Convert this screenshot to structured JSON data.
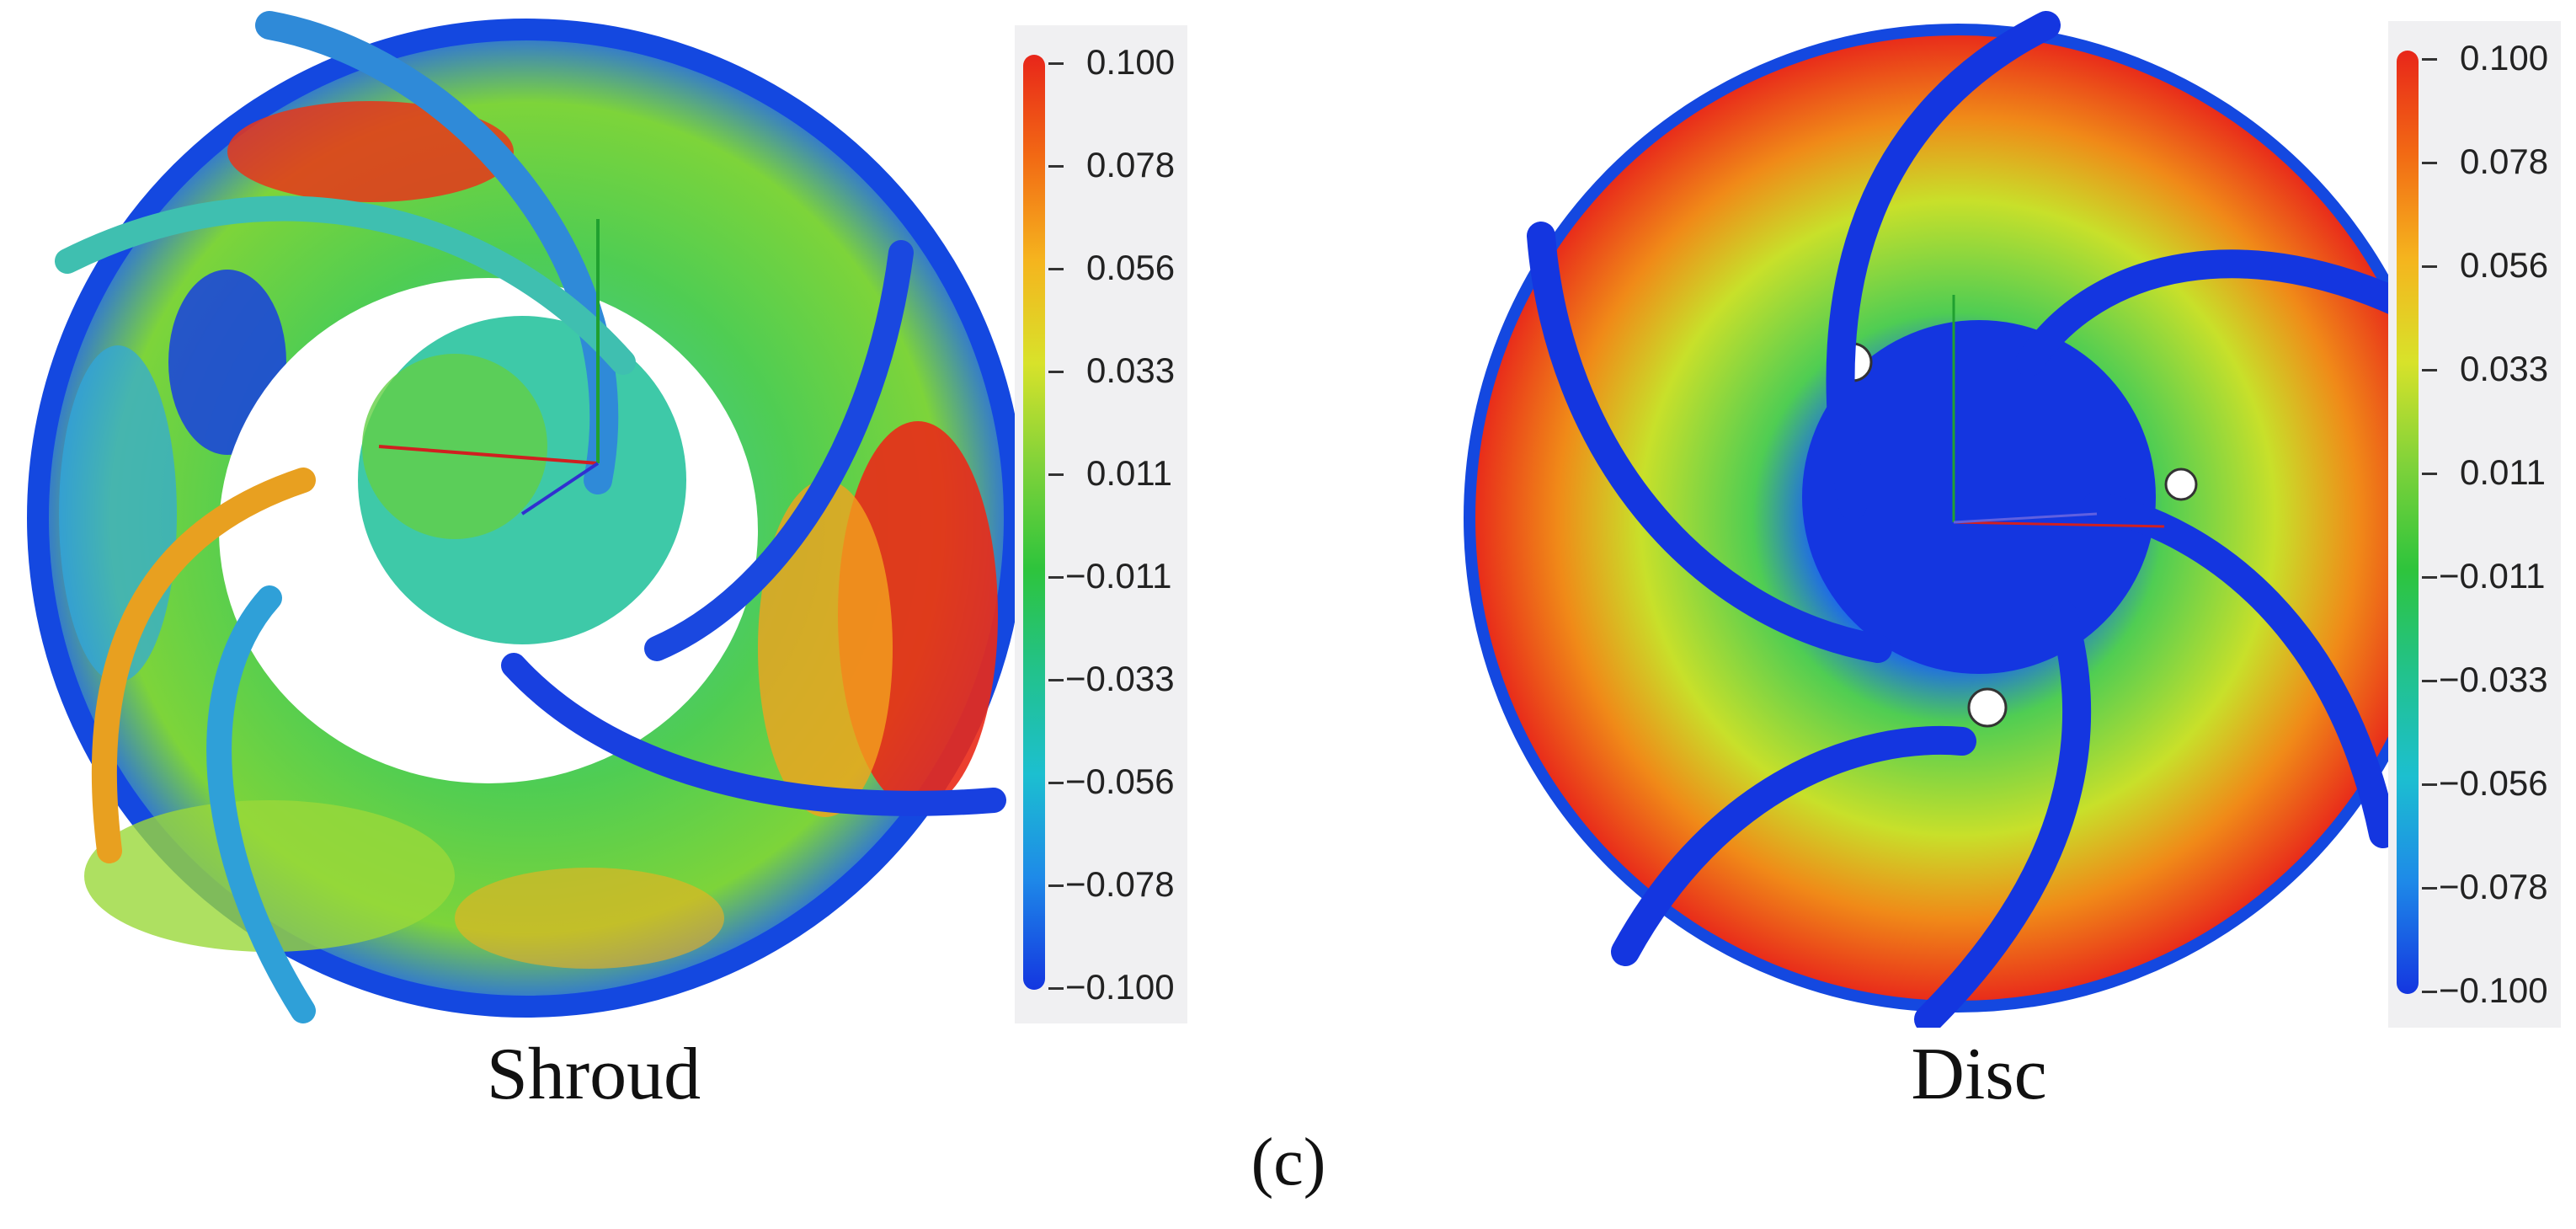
{
  "figure_label": "(c)",
  "panels": [
    {
      "caption": "Shroud",
      "colorbar": {
        "ticks": [
          "0.100",
          "0.078",
          "0.056",
          "0.033",
          "0.011",
          "−0.011",
          "−0.033",
          "−0.056",
          "−0.078",
          "−0.100"
        ]
      }
    },
    {
      "caption": "Disc",
      "colorbar": {
        "ticks": [
          "0.100",
          "0.078",
          "0.056",
          "0.033",
          "0.011",
          "−0.011",
          "−0.033",
          "−0.056",
          "−0.078",
          "−0.100"
        ]
      }
    }
  ],
  "colors": {
    "scale": [
      "#e8261a",
      "#f26a14",
      "#f5b41e",
      "#d8e22a",
      "#7fd23a",
      "#2ec43c",
      "#22c28c",
      "#1cbfd0",
      "#1e8ae8",
      "#1436e0"
    ]
  }
}
